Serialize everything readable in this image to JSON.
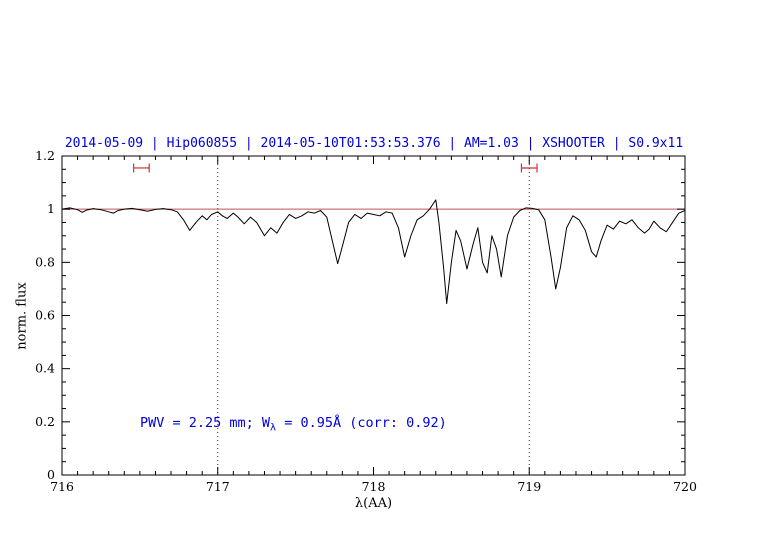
{
  "title": "2014-05-09 | Hip060855 | 2014-05-10T01:53:53.376 | AM=1.03 | XSHOOTER | S0.9x11",
  "annotation": {
    "prefix": "PWV = 2.25 mm; W",
    "sub": "λ",
    "suffix": " = 0.95Å (corr: 0.92)"
  },
  "chart_data": {
    "type": "line",
    "title": "2014-05-09 | Hip060855 | 2014-05-10T01:53:53.376 | AM=1.03 | XSHOOTER | S0.9x11",
    "xlabel": "λ(AA)",
    "ylabel": "norm. flux",
    "xlim": [
      716,
      720
    ],
    "ylim": [
      0,
      1.2
    ],
    "xticks": [
      716,
      717,
      718,
      719,
      720
    ],
    "xtick_labels": [
      "716",
      "717",
      "718",
      "719",
      "720"
    ],
    "yticks": [
      0,
      0.2,
      0.4,
      0.6,
      0.8,
      1,
      1.2
    ],
    "ytick_labels": [
      "0",
      "0.2",
      "0.4",
      "0.6",
      "0.8",
      "1",
      "1.2"
    ],
    "x_minor_step": 0.1,
    "y_minor_step": 0.05,
    "grid": "off",
    "legend": "none",
    "dotted_vlines": [
      717,
      719
    ],
    "continuum_y": 1.0,
    "band_markers": [
      {
        "x_center": 716.51,
        "half_width": 0.05,
        "y": 1.155
      },
      {
        "x_center": 719.0,
        "half_width": 0.05,
        "y": 1.155
      }
    ],
    "colors": {
      "spectrum": "#000000",
      "continuum": "#c05050",
      "marker": "#cc3333",
      "title": "#0000dd",
      "annotation": "#0000dd",
      "dotted_line": "#333333"
    },
    "series": [
      {
        "name": "spectrum",
        "x": [
          716.0,
          716.05,
          716.1,
          716.13,
          716.16,
          716.2,
          716.25,
          716.3,
          716.33,
          716.36,
          716.4,
          716.45,
          716.5,
          716.55,
          716.6,
          716.65,
          716.7,
          716.74,
          716.78,
          716.82,
          716.86,
          716.9,
          716.93,
          716.96,
          717.0,
          717.03,
          717.06,
          717.1,
          717.13,
          717.17,
          717.21,
          717.25,
          717.3,
          717.34,
          717.38,
          717.42,
          717.46,
          717.5,
          717.54,
          717.58,
          717.62,
          717.66,
          717.7,
          717.74,
          717.77,
          717.8,
          717.84,
          717.88,
          717.92,
          717.96,
          718.0,
          718.04,
          718.08,
          718.12,
          718.16,
          718.2,
          718.24,
          718.28,
          718.32,
          718.36,
          718.4,
          718.42,
          718.45,
          718.47,
          718.5,
          718.53,
          718.56,
          718.6,
          718.64,
          718.67,
          718.7,
          718.73,
          718.76,
          718.79,
          718.82,
          718.86,
          718.9,
          718.94,
          718.98,
          719.02,
          719.06,
          719.1,
          719.14,
          719.17,
          719.2,
          719.24,
          719.28,
          719.32,
          719.36,
          719.4,
          719.43,
          719.46,
          719.5,
          719.54,
          719.58,
          719.62,
          719.66,
          719.7,
          719.74,
          719.77,
          719.8,
          719.84,
          719.88,
          719.92,
          719.96,
          720.0
        ],
        "y": [
          1.0,
          1.005,
          0.998,
          0.988,
          0.997,
          1.002,
          0.998,
          0.99,
          0.985,
          0.995,
          1.0,
          1.003,
          0.998,
          0.992,
          0.999,
          1.002,
          0.998,
          0.99,
          0.96,
          0.92,
          0.95,
          0.975,
          0.96,
          0.98,
          0.99,
          0.975,
          0.965,
          0.985,
          0.97,
          0.945,
          0.97,
          0.95,
          0.9,
          0.93,
          0.91,
          0.95,
          0.98,
          0.965,
          0.975,
          0.99,
          0.985,
          0.995,
          0.97,
          0.87,
          0.795,
          0.86,
          0.95,
          0.98,
          0.965,
          0.985,
          0.98,
          0.975,
          0.99,
          0.985,
          0.93,
          0.82,
          0.9,
          0.96,
          0.975,
          1.0,
          1.035,
          0.95,
          0.78,
          0.645,
          0.8,
          0.92,
          0.88,
          0.775,
          0.87,
          0.93,
          0.8,
          0.76,
          0.9,
          0.85,
          0.745,
          0.9,
          0.97,
          0.995,
          1.005,
          1.003,
          0.998,
          0.96,
          0.82,
          0.7,
          0.78,
          0.93,
          0.975,
          0.96,
          0.92,
          0.84,
          0.82,
          0.88,
          0.94,
          0.925,
          0.955,
          0.945,
          0.96,
          0.93,
          0.91,
          0.925,
          0.955,
          0.93,
          0.915,
          0.95,
          0.985,
          0.995
        ]
      }
    ]
  }
}
